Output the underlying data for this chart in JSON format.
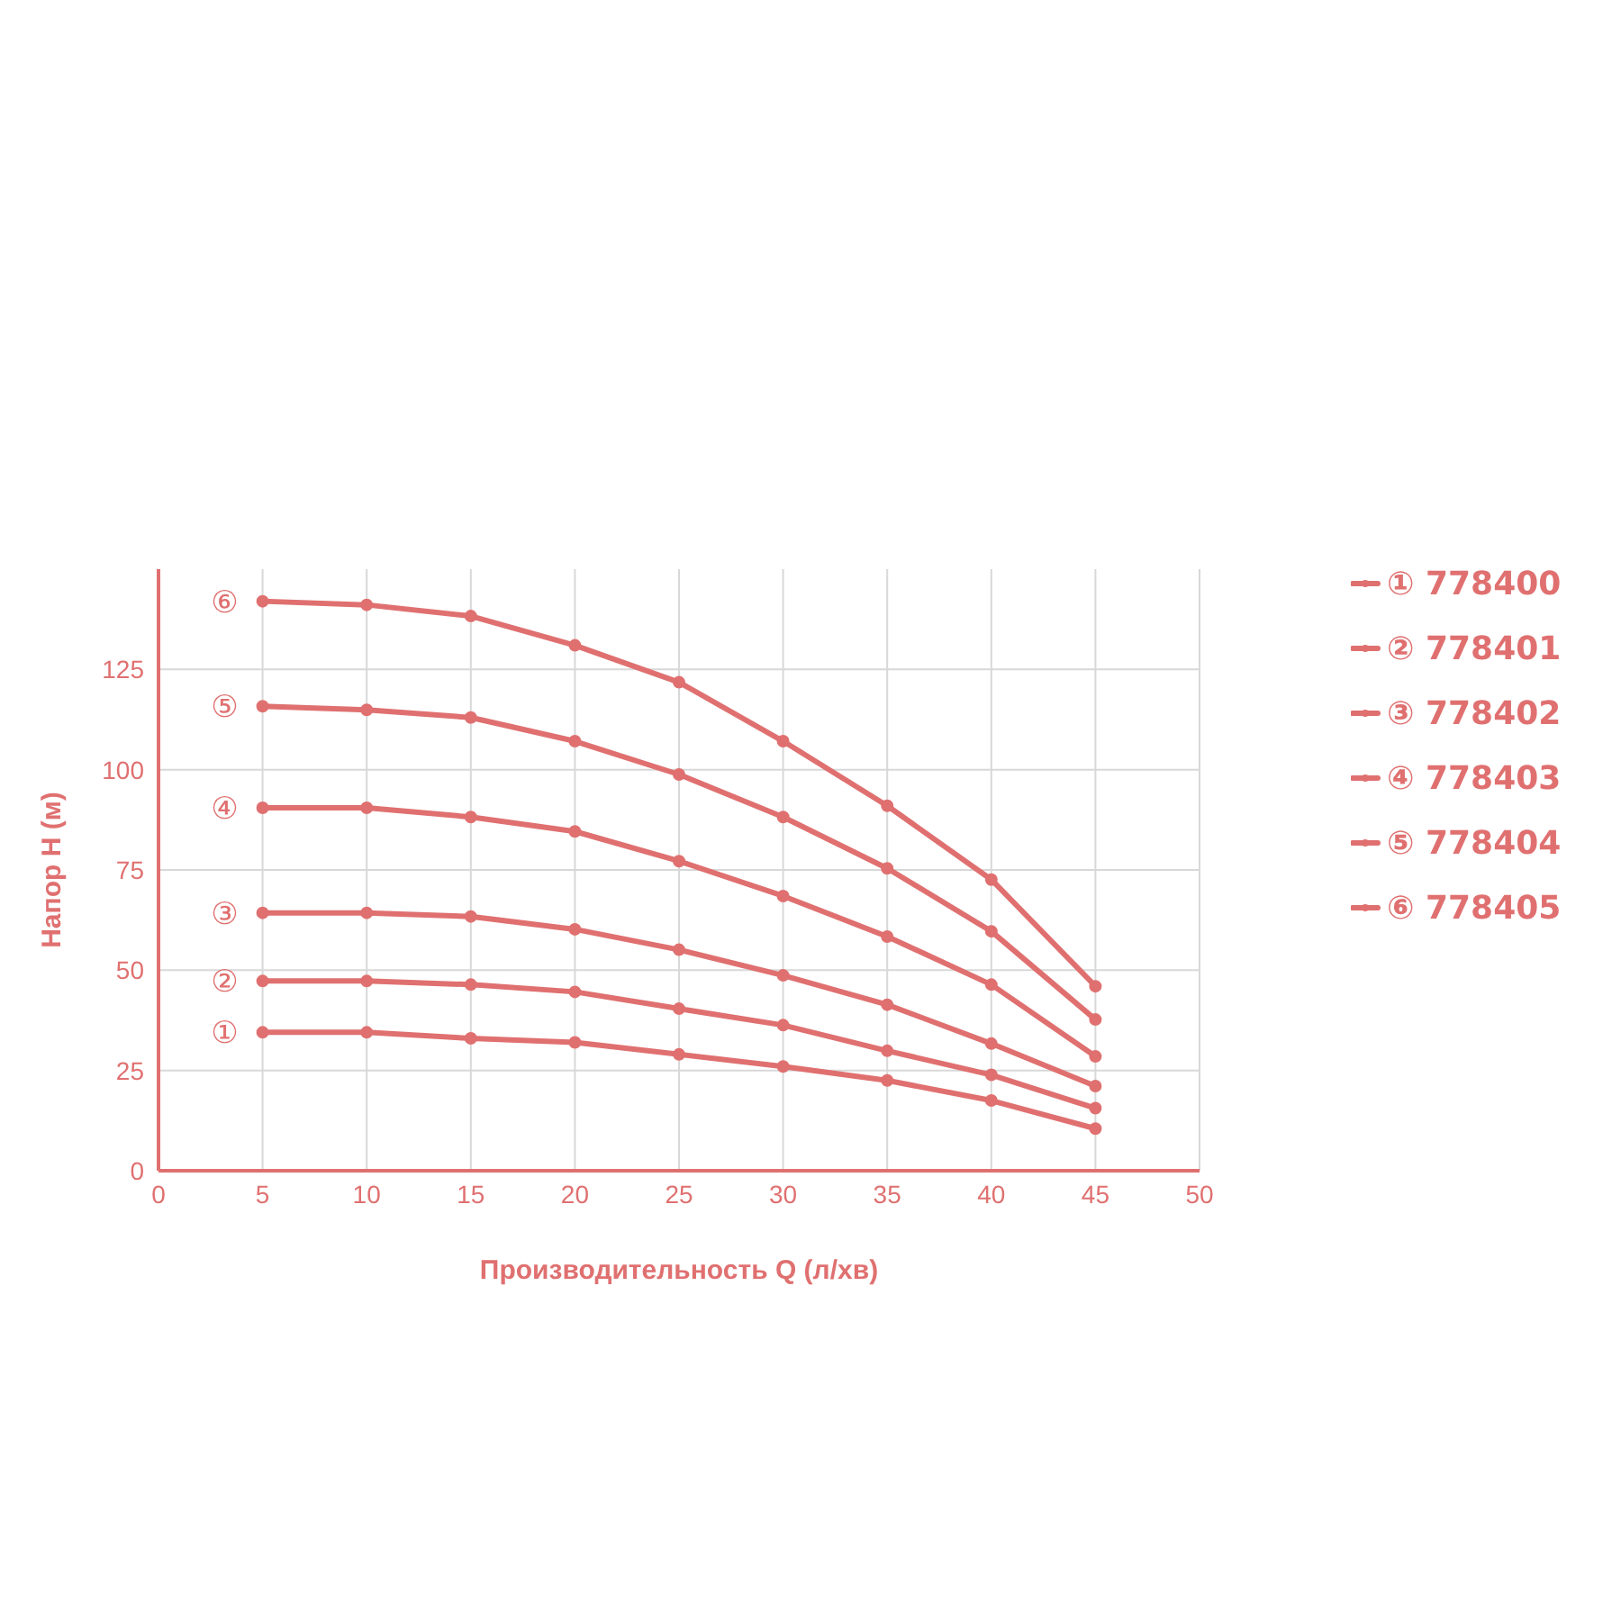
{
  "chart_data": {
    "type": "line",
    "xlabel": "Производительность Q (л/хв)",
    "ylabel": "Напор H (м)",
    "x": [
      5,
      10,
      15,
      20,
      25,
      30,
      35,
      40,
      45
    ],
    "series": [
      {
        "name": "① 778400",
        "color": "#e07070",
        "values": [
          34.5,
          34.5,
          33,
          32,
          29,
          26,
          22.5,
          17.5,
          10.5
        ]
      },
      {
        "name": "② 778401",
        "color": "#e07070",
        "values": [
          47.3,
          47.3,
          46.4,
          44.6,
          40.4,
          36.3,
          29.9,
          23.9,
          15.6
        ]
      },
      {
        "name": "③ 778402",
        "color": "#e07070",
        "values": [
          64.3,
          64.3,
          63.4,
          60.2,
          55.1,
          48.7,
          41.4,
          31.7,
          21.1
        ]
      },
      {
        "name": "④ 778403",
        "color": "#e07070",
        "values": [
          90.5,
          90.5,
          88.2,
          84.6,
          77.2,
          68.5,
          58.4,
          46.4,
          28.5
        ]
      },
      {
        "name": "⑤ 778404",
        "color": "#e07070",
        "values": [
          115.8,
          114.9,
          113,
          107.1,
          98.8,
          88.2,
          75.4,
          59.7,
          37.7
        ]
      },
      {
        "name": "⑥ 778405",
        "color": "#e07070",
        "values": [
          142,
          141.1,
          138.3,
          131,
          121.8,
          107.1,
          91,
          72.6,
          46
        ]
      }
    ],
    "annotations": [
      "①",
      "②",
      "③",
      "④",
      "⑤",
      "⑥"
    ],
    "xlim": [
      0,
      50
    ],
    "xticks": [
      0,
      5,
      10,
      15,
      20,
      25,
      30,
      35,
      40,
      45,
      50
    ],
    "ylim": [
      0,
      150
    ],
    "yticks": [
      0,
      25,
      50,
      75,
      100,
      125
    ],
    "grid": true,
    "legend": "right",
    "marker": "circle",
    "line_style": "solid"
  }
}
